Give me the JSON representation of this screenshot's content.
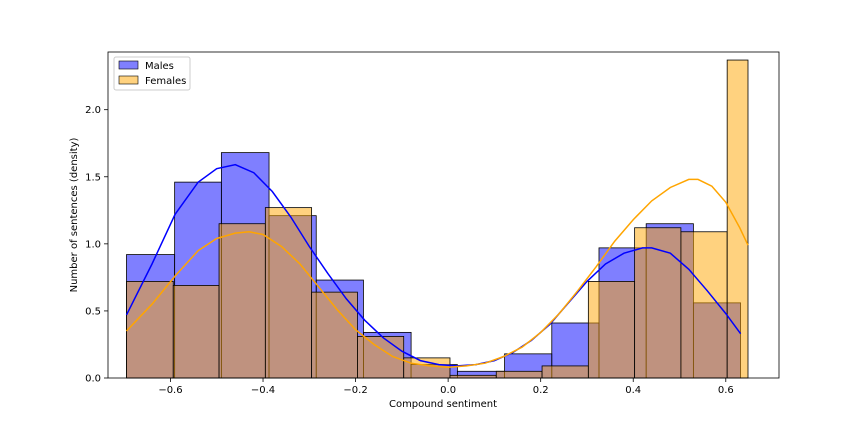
{
  "chart_data": {
    "type": "bar",
    "xlabel": "Compound sentiment",
    "ylabel": "Number of sentences (density)",
    "xlim": [
      -0.735,
      0.715
    ],
    "ylim": [
      0,
      2.43
    ],
    "xticks": [
      -0.6,
      -0.4,
      -0.2,
      0.0,
      0.2,
      0.4,
      0.6
    ],
    "xtick_labels": [
      "−0.6",
      "−0.4",
      "−0.2",
      "0.0",
      "0.2",
      "0.4",
      "0.6"
    ],
    "yticks": [
      0.0,
      0.5,
      1.0,
      1.5,
      2.0
    ],
    "ytick_labels": [
      "0.0",
      "0.5",
      "1.0",
      "1.5",
      "2.0"
    ],
    "legend_position": "top-left",
    "series": [
      {
        "name": "Males",
        "color": "#0000ff",
        "bins": [
          [
            -0.695,
            -0.591,
            0.92
          ],
          [
            -0.591,
            -0.49,
            1.46
          ],
          [
            -0.49,
            -0.387,
            1.68
          ],
          [
            -0.387,
            -0.285,
            1.21
          ],
          [
            -0.285,
            -0.183,
            0.73
          ],
          [
            -0.183,
            -0.08,
            0.34
          ],
          [
            -0.08,
            0.02,
            0.1
          ],
          [
            0.02,
            0.122,
            0.05
          ],
          [
            0.122,
            0.224,
            0.18
          ],
          [
            0.224,
            0.326,
            0.41
          ],
          [
            0.326,
            0.428,
            0.97
          ],
          [
            0.428,
            0.53,
            1.15
          ],
          [
            0.53,
            0.632,
            0.56
          ]
        ],
        "kde_x": [
          -0.695,
          -0.64,
          -0.59,
          -0.54,
          -0.5,
          -0.46,
          -0.42,
          -0.38,
          -0.34,
          -0.3,
          -0.26,
          -0.22,
          -0.18,
          -0.14,
          -0.1,
          -0.06,
          -0.02,
          0.02,
          0.06,
          0.1,
          0.14,
          0.18,
          0.22,
          0.26,
          0.3,
          0.34,
          0.38,
          0.42,
          0.44,
          0.48,
          0.52,
          0.56,
          0.6,
          0.632
        ],
        "kde_y": [
          0.47,
          0.85,
          1.22,
          1.46,
          1.56,
          1.59,
          1.53,
          1.39,
          1.2,
          0.98,
          0.78,
          0.59,
          0.43,
          0.3,
          0.2,
          0.13,
          0.1,
          0.09,
          0.1,
          0.13,
          0.19,
          0.28,
          0.4,
          0.56,
          0.72,
          0.85,
          0.93,
          0.97,
          0.97,
          0.93,
          0.81,
          0.65,
          0.48,
          0.33
        ]
      },
      {
        "name": "Females",
        "color": "#ffa500",
        "bins": [
          [
            -0.695,
            -0.594,
            0.72
          ],
          [
            -0.594,
            -0.495,
            0.69
          ],
          [
            -0.495,
            -0.395,
            1.15
          ],
          [
            -0.395,
            -0.295,
            1.27
          ],
          [
            -0.295,
            -0.196,
            0.64
          ],
          [
            -0.196,
            -0.096,
            0.31
          ],
          [
            -0.096,
            0.004,
            0.15
          ],
          [
            0.004,
            0.104,
            0.02
          ],
          [
            0.104,
            0.203,
            0.05
          ],
          [
            0.203,
            0.303,
            0.09
          ],
          [
            0.303,
            0.403,
            0.72
          ],
          [
            0.403,
            0.503,
            1.12
          ],
          [
            0.503,
            0.603,
            1.09
          ],
          [
            0.603,
            0.648,
            2.37
          ]
        ],
        "kde_x": [
          -0.695,
          -0.64,
          -0.59,
          -0.54,
          -0.5,
          -0.46,
          -0.43,
          -0.4,
          -0.36,
          -0.32,
          -0.28,
          -0.24,
          -0.2,
          -0.16,
          -0.12,
          -0.08,
          -0.04,
          0.0,
          0.04,
          0.08,
          0.12,
          0.16,
          0.2,
          0.24,
          0.28,
          0.32,
          0.36,
          0.4,
          0.44,
          0.48,
          0.52,
          0.54,
          0.57,
          0.6,
          0.63,
          0.648
        ],
        "kde_y": [
          0.35,
          0.55,
          0.76,
          0.95,
          1.04,
          1.08,
          1.09,
          1.07,
          0.98,
          0.85,
          0.68,
          0.51,
          0.36,
          0.25,
          0.16,
          0.11,
          0.09,
          0.08,
          0.09,
          0.11,
          0.16,
          0.23,
          0.34,
          0.48,
          0.65,
          0.83,
          1.02,
          1.18,
          1.32,
          1.42,
          1.48,
          1.48,
          1.43,
          1.31,
          1.12,
          0.99
        ]
      }
    ]
  }
}
